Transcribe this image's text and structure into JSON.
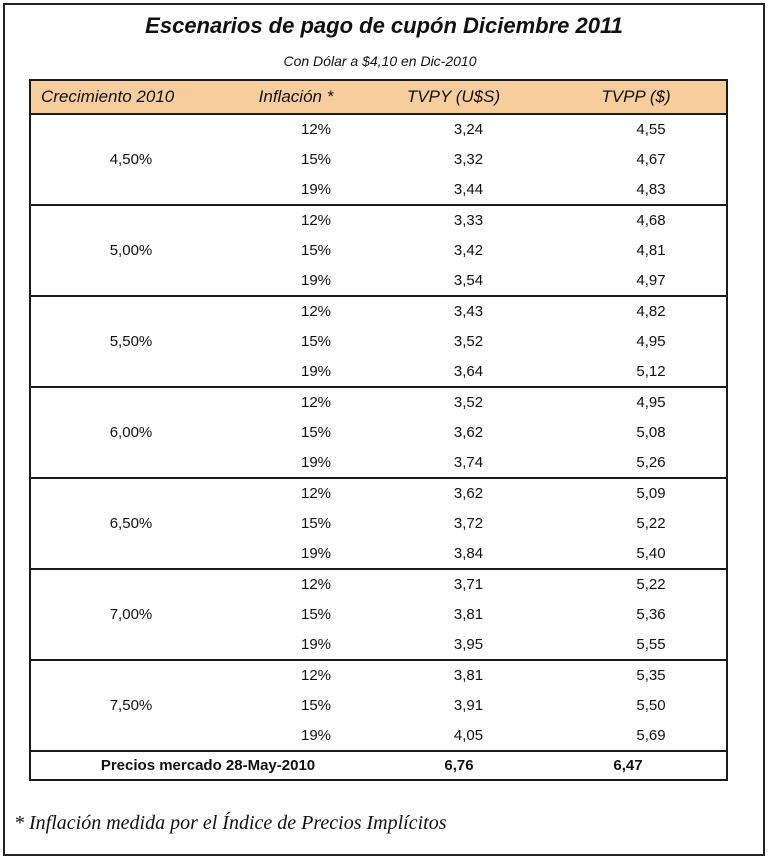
{
  "title": "Escenarios de pago de cupón Diciembre 2011",
  "subtitle": "Con Dólar a $4,10 en Dic-2010",
  "headers": {
    "growth": "Crecimiento 2010",
    "inflation": "Inflación *",
    "tvpy": "TVPY (U$S)",
    "tvpp": "TVPP ($)"
  },
  "groups": [
    {
      "growth": "4,50%",
      "rows": [
        {
          "inflation": "12%",
          "tvpy": "3,24",
          "tvpp": "4,55"
        },
        {
          "inflation": "15%",
          "tvpy": "3,32",
          "tvpp": "4,67"
        },
        {
          "inflation": "19%",
          "tvpy": "3,44",
          "tvpp": "4,83"
        }
      ]
    },
    {
      "growth": "5,00%",
      "rows": [
        {
          "inflation": "12%",
          "tvpy": "3,33",
          "tvpp": "4,68"
        },
        {
          "inflation": "15%",
          "tvpy": "3,42",
          "tvpp": "4,81"
        },
        {
          "inflation": "19%",
          "tvpy": "3,54",
          "tvpp": "4,97"
        }
      ]
    },
    {
      "growth": "5,50%",
      "rows": [
        {
          "inflation": "12%",
          "tvpy": "3,43",
          "tvpp": "4,82"
        },
        {
          "inflation": "15%",
          "tvpy": "3,52",
          "tvpp": "4,95"
        },
        {
          "inflation": "19%",
          "tvpy": "3,64",
          "tvpp": "5,12"
        }
      ]
    },
    {
      "growth": "6,00%",
      "rows": [
        {
          "inflation": "12%",
          "tvpy": "3,52",
          "tvpp": "4,95"
        },
        {
          "inflation": "15%",
          "tvpy": "3,62",
          "tvpp": "5,08"
        },
        {
          "inflation": "19%",
          "tvpy": "3,74",
          "tvpp": "5,26"
        }
      ]
    },
    {
      "growth": "6,50%",
      "rows": [
        {
          "inflation": "12%",
          "tvpy": "3,62",
          "tvpp": "5,09"
        },
        {
          "inflation": "15%",
          "tvpy": "3,72",
          "tvpp": "5,22"
        },
        {
          "inflation": "19%",
          "tvpy": "3,84",
          "tvpp": "5,40"
        }
      ]
    },
    {
      "growth": "7,00%",
      "rows": [
        {
          "inflation": "12%",
          "tvpy": "3,71",
          "tvpp": "5,22"
        },
        {
          "inflation": "15%",
          "tvpy": "3,81",
          "tvpp": "5,36"
        },
        {
          "inflation": "19%",
          "tvpy": "3,95",
          "tvpp": "5,55"
        }
      ]
    },
    {
      "growth": "7,50%",
      "rows": [
        {
          "inflation": "12%",
          "tvpy": "3,81",
          "tvpp": "5,35"
        },
        {
          "inflation": "15%",
          "tvpy": "3,91",
          "tvpp": "5,50"
        },
        {
          "inflation": "19%",
          "tvpy": "4,05",
          "tvpp": "5,69"
        }
      ]
    }
  ],
  "totals": {
    "label": "Precios mercado 28-May-2010",
    "tvpy": "6,76",
    "tvpp": "6,47"
  },
  "footnote": "* Inflación medida por el Índice de Precios Implícitos",
  "colors": {
    "header_bg": "#f7cd9c",
    "border": "#1a1a1a"
  }
}
